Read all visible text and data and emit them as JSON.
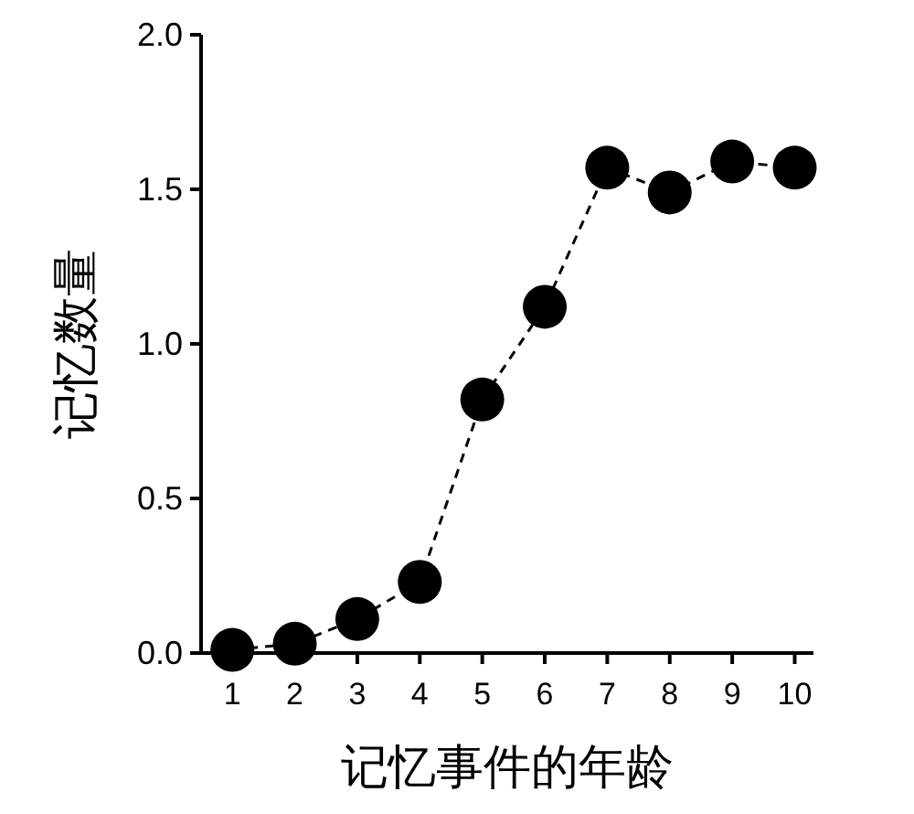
{
  "chart_data": {
    "type": "line",
    "xlabel": "记忆事件的年龄",
    "ylabel": "记忆数量",
    "x": [
      1,
      2,
      3,
      4,
      5,
      6,
      7,
      8,
      9,
      10
    ],
    "series": [
      {
        "color": "#000000",
        "values": [
          0.01,
          0.03,
          0.11,
          0.23,
          0.82,
          1.12,
          1.57,
          1.49,
          1.59,
          1.57
        ]
      }
    ],
    "xlim": [
      0.5,
      10.3
    ],
    "ylim": [
      0,
      2
    ],
    "xticks": [
      1,
      2,
      3,
      4,
      5,
      6,
      7,
      8,
      9,
      10
    ],
    "yticks": [
      {
        "value": 0,
        "label": "0.0"
      },
      {
        "value": 0.5,
        "label": "0.5"
      },
      {
        "value": 1,
        "label": "1.0"
      },
      {
        "value": 1.5,
        "label": "1.5"
      },
      {
        "value": 2,
        "label": "2.0"
      }
    ],
    "marker": "circle",
    "line_style": "dashed"
  }
}
